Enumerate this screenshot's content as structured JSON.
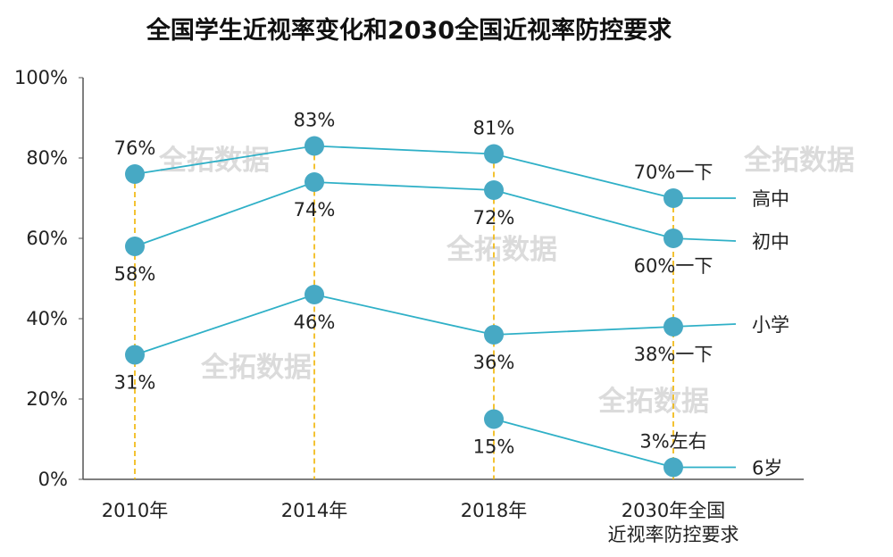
{
  "chart_data": {
    "type": "line",
    "title": "全国学生近视率变化和2030全国近视率防控要求",
    "xlabel": "",
    "ylabel": "",
    "ylim": [
      0,
      100
    ],
    "y_ticks": [
      "0%",
      "20%",
      "40%",
      "60%",
      "80%",
      "100%"
    ],
    "y_tick_values": [
      0,
      20,
      40,
      60,
      80,
      100
    ],
    "categories": [
      "2010年",
      "2014年",
      "2018年",
      "2030年全国近视率防控要求"
    ],
    "category_lines": [
      [
        "2010年"
      ],
      [
        "2014年"
      ],
      [
        "2018年"
      ],
      [
        "2030年全国",
        "近视率防控要求"
      ]
    ],
    "grid": false,
    "legend": "series names at right end of lines",
    "series": [
      {
        "name": "高中",
        "values": [
          76,
          83,
          81,
          70
        ],
        "labels": [
          "76%",
          "83%",
          "81%",
          "70%一下"
        ],
        "label_pos": [
          "above",
          "above",
          "above",
          "above"
        ]
      },
      {
        "name": "初中",
        "values": [
          58,
          74,
          72,
          60
        ],
        "labels": [
          "58%",
          "74%",
          "72%",
          "60%一下"
        ],
        "label_pos": [
          "below",
          "below",
          "below",
          "below"
        ]
      },
      {
        "name": "小学",
        "values": [
          31,
          46,
          36,
          38
        ],
        "labels": [
          "31%",
          "46%",
          "36%",
          "38%一下"
        ],
        "label_pos": [
          "below",
          "below",
          "below",
          "below"
        ]
      },
      {
        "name": "6岁",
        "values": [
          null,
          null,
          15,
          3
        ],
        "labels": [
          "",
          "",
          "15%",
          "3%左右"
        ],
        "label_pos": [
          "below",
          "below",
          "below",
          "above"
        ]
      }
    ],
    "watermark": "全拓数据",
    "colors": {
      "line": "#2fb0c7",
      "marker": "#47a9c4",
      "guide": "#f0b400",
      "axis": "#555555"
    }
  }
}
